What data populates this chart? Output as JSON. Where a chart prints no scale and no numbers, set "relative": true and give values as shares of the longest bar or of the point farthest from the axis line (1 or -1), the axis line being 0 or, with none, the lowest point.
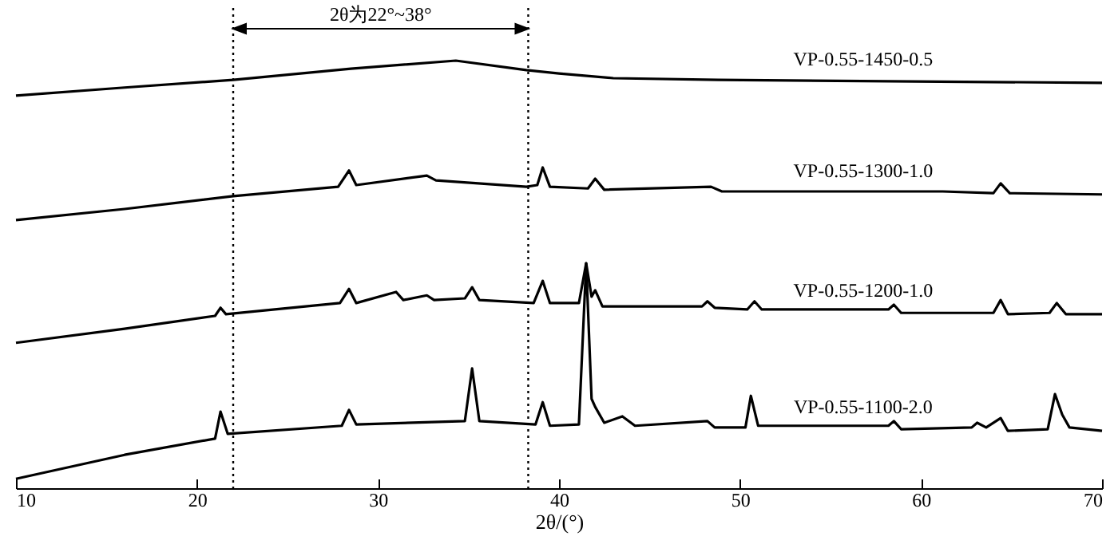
{
  "chart_data": {
    "type": "line",
    "relative": true,
    "xlabel": "2θ/(°)",
    "xlim": [
      10,
      70
    ],
    "xticks": [
      10,
      20,
      30,
      40,
      50,
      60,
      70
    ],
    "grid": false,
    "legend": false,
    "annotations": [
      "2θ为22°~38°"
    ],
    "ref_lines": [
      {
        "axis": "x",
        "value": 22,
        "color": "#000000",
        "line_style": "dotted"
      },
      {
        "axis": "x",
        "value": 38.3,
        "color": "#000000",
        "line_style": "dotted"
      }
    ],
    "series": [
      {
        "name": "VP-0.55-1450-0.5",
        "color": "#000000",
        "x": [
          10,
          16,
          22,
          28.5,
          34.3,
          38.2,
          40,
          43,
          48.8,
          70
        ],
        "values": [
          0.918,
          0.937,
          0.955,
          0.981,
          1,
          0.978,
          0.97,
          0.959,
          0.955,
          0.948
        ]
      },
      {
        "name": "VP-0.55-1300-1.0",
        "color": "#000000",
        "x": [
          10,
          16,
          22,
          27.8,
          28.4,
          28.8,
          32.7,
          33.2,
          38.2,
          38.8,
          39.1,
          39.5,
          41.6,
          42,
          42.5,
          48.4,
          49,
          61.2,
          64,
          64.4,
          64.9,
          70
        ],
        "values": [
          0.627,
          0.653,
          0.683,
          0.705,
          0.743,
          0.709,
          0.731,
          0.72,
          0.705,
          0.709,
          0.75,
          0.705,
          0.701,
          0.724,
          0.698,
          0.705,
          0.694,
          0.694,
          0.69,
          0.713,
          0.69,
          0.687
        ]
      },
      {
        "name": "VP-0.55-1200-1.0",
        "color": "#000000",
        "x": [
          10,
          16,
          21,
          21.3,
          21.6,
          27.9,
          28.4,
          28.8,
          31,
          31.4,
          32.7,
          33.1,
          34.8,
          35.2,
          35.6,
          38.6,
          39.1,
          39.5,
          41.1,
          41.5,
          41.8,
          42,
          42.4,
          47.9,
          48.2,
          48.6,
          50.4,
          50.8,
          51.2,
          58.2,
          58.5,
          58.9,
          64,
          64.4,
          64.8,
          67.1,
          67.5,
          68,
          70
        ],
        "values": [
          0.34,
          0.373,
          0.403,
          0.422,
          0.407,
          0.433,
          0.466,
          0.433,
          0.459,
          0.44,
          0.451,
          0.44,
          0.444,
          0.47,
          0.44,
          0.433,
          0.485,
          0.433,
          0.433,
          0.526,
          0.448,
          0.463,
          0.425,
          0.425,
          0.437,
          0.422,
          0.418,
          0.437,
          0.418,
          0.418,
          0.429,
          0.41,
          0.41,
          0.44,
          0.407,
          0.41,
          0.433,
          0.407,
          0.407
        ]
      },
      {
        "name": "VP-0.55-1100-2.0",
        "color": "#000000",
        "x": [
          10,
          16,
          21,
          21.3,
          21.7,
          28,
          28.4,
          28.8,
          34.8,
          35.2,
          35.6,
          38.7,
          39.1,
          39.5,
          41.1,
          41.5,
          41.8,
          42,
          42.5,
          43.5,
          44.2,
          48.2,
          48.6,
          50.3,
          50.6,
          51,
          58.2,
          58.5,
          58.9,
          62.8,
          63.1,
          63.6,
          64.4,
          64.8,
          67,
          67.4,
          67.8,
          68.2,
          70
        ],
        "values": [
          0.022,
          0.078,
          0.116,
          0.179,
          0.127,
          0.146,
          0.183,
          0.149,
          0.157,
          0.28,
          0.157,
          0.149,
          0.201,
          0.146,
          0.149,
          0.526,
          0.209,
          0.19,
          0.153,
          0.168,
          0.146,
          0.157,
          0.142,
          0.142,
          0.216,
          0.146,
          0.146,
          0.157,
          0.138,
          0.142,
          0.153,
          0.142,
          0.164,
          0.134,
          0.138,
          0.22,
          0.172,
          0.142,
          0.134
        ]
      }
    ]
  }
}
